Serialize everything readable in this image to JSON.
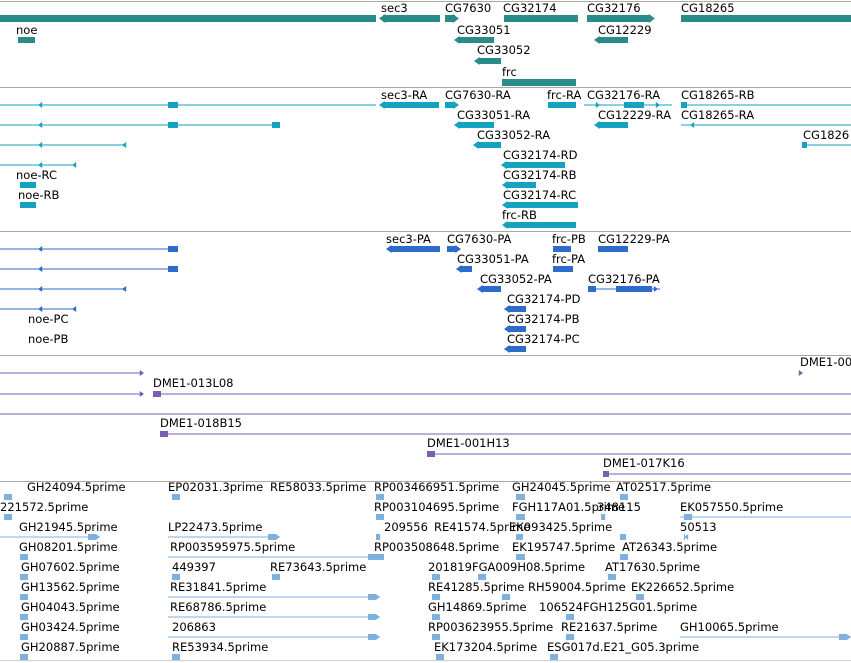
{
  "tracks": {
    "genes": {
      "color": "#2b8a8a",
      "labels": [
        "sec3",
        "CG7630",
        "CG32174",
        "CG32176",
        "CG18265",
        "noe",
        "CG33051",
        "CG12229",
        "CG33052",
        "frc"
      ]
    },
    "transcripts": {
      "color": "#14a3bf",
      "labels": [
        "sec3-RA",
        "CG7630-RA",
        "frc-RA",
        "CG32176-RA",
        "CG18265-RB",
        "CG33051-RA",
        "CG12229-RA",
        "CG18265-RA",
        "CG1826",
        "CG33052-RA",
        "CG32174-RD",
        "noe-RC",
        "CG32174-RB",
        "noe-RB",
        "CG32174-RC",
        "frc-RB"
      ]
    },
    "proteins": {
      "color": "#2f6bc9",
      "labels": [
        "sec3-PA",
        "CG7630-PA",
        "frc-PB",
        "CG12229-PA",
        "CG33051-PA",
        "frc-PA",
        "CG33052-PA",
        "CG32176-PA",
        "CG32174-PD",
        "noe-PC",
        "CG32174-PB",
        "noe-PB",
        "CG32174-PC"
      ]
    },
    "clones": {
      "color": "#7a5fb0",
      "labels": [
        "DME1-00",
        "DME1-013L08",
        "DME1-018B15",
        "DME1-001H13",
        "DME1-017K16"
      ]
    },
    "ests": {
      "color": "#7fb1de",
      "labels": [
        "GH24094.5prime",
        "EP02031.3prime",
        "RE58033.5prime",
        "RP003466951.5prime",
        "GH24045.5prime",
        "AT02517.5prime",
        "221572.5prime",
        "RP003104695.5prime",
        "FGH117A01.5prime",
        "348115",
        "EK057550.5prime",
        "GH21945.5prime",
        "LP22473.5prime",
        "209556",
        "RE41574.5prime",
        "EK093425.5prime",
        "50513",
        "GH08201.5prime",
        "RP003595975.5prime",
        "RP003508648.5prime",
        "EK195747.5prime",
        "AT26343.5prime",
        "GH07602.5prime",
        "449397",
        "RE73643.5prime",
        "201819",
        "FGA009H08.5prime",
        "AT17630.5prime",
        "GH13562.5prime",
        "RE31841.5prime",
        "RE41285.5prime",
        "RH59004.5prime",
        "EK226652.5prime",
        "GH04043.5prime",
        "RE68786.5prime",
        "GH14869.5prime",
        "106524",
        "FGH125G01.5prime",
        "GH03424.5prime",
        "206863",
        "RP003623955.5prime",
        "RE21637.5prime",
        "GH10065.5prime",
        "GH20887.5prime",
        "RE53934.5prime",
        "EK173204.5prime",
        "ESG017d.E21_G05.3prime"
      ]
    }
  }
}
